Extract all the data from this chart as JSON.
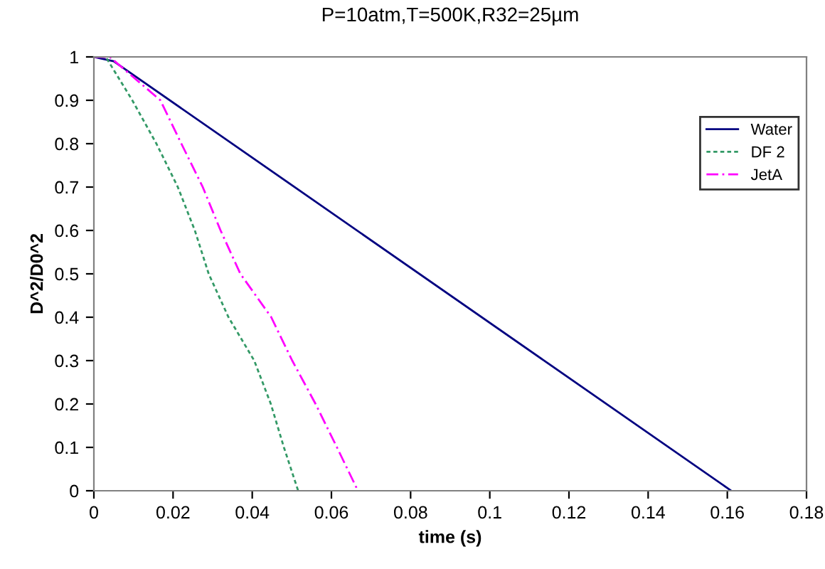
{
  "chart_data": {
    "type": "line",
    "title": "P=10atm,T=500K,R32=25µm",
    "xlabel": "time (s)",
    "ylabel": "D^2/D0^2",
    "xlim": [
      0,
      0.18
    ],
    "xticks": [
      0,
      0.02,
      0.04,
      0.06,
      0.08,
      0.1,
      0.12,
      0.14,
      0.16,
      0.18
    ],
    "ylim": [
      0,
      1
    ],
    "yticks": [
      0,
      0.1,
      0.2,
      0.3,
      0.4,
      0.5,
      0.6,
      0.7,
      0.8,
      0.9,
      1
    ],
    "grid": false,
    "legend": "top right",
    "marker": "none",
    "series": [
      {
        "name": "Water",
        "color": "#000080",
        "line_style": "solid",
        "x": [
          0,
          0.005,
          0.161
        ],
        "values": [
          1,
          0.99,
          0
        ]
      },
      {
        "name": "DF 2",
        "color": "#339966",
        "line_style": "dotted",
        "x": [
          0,
          0.003,
          0.0097,
          0.0158,
          0.0212,
          0.0255,
          0.029,
          0.034,
          0.0405,
          0.0447,
          0.048,
          0.0516
        ],
        "values": [
          1,
          1,
          0.9,
          0.8,
          0.7,
          0.6,
          0.5,
          0.4,
          0.3,
          0.2,
          0.1,
          0
        ]
      },
      {
        "name": "JetA",
        "color": "#ff00ff",
        "line_style": "dashed",
        "x": [
          0,
          0.004,
          0.0168,
          0.0221,
          0.0275,
          0.032,
          0.037,
          0.0448,
          0.0501,
          0.056,
          0.0614,
          0.0667
        ],
        "values": [
          1,
          1,
          0.9,
          0.8,
          0.7,
          0.6,
          0.5,
          0.4,
          0.3,
          0.2,
          0.1,
          0
        ]
      }
    ]
  }
}
